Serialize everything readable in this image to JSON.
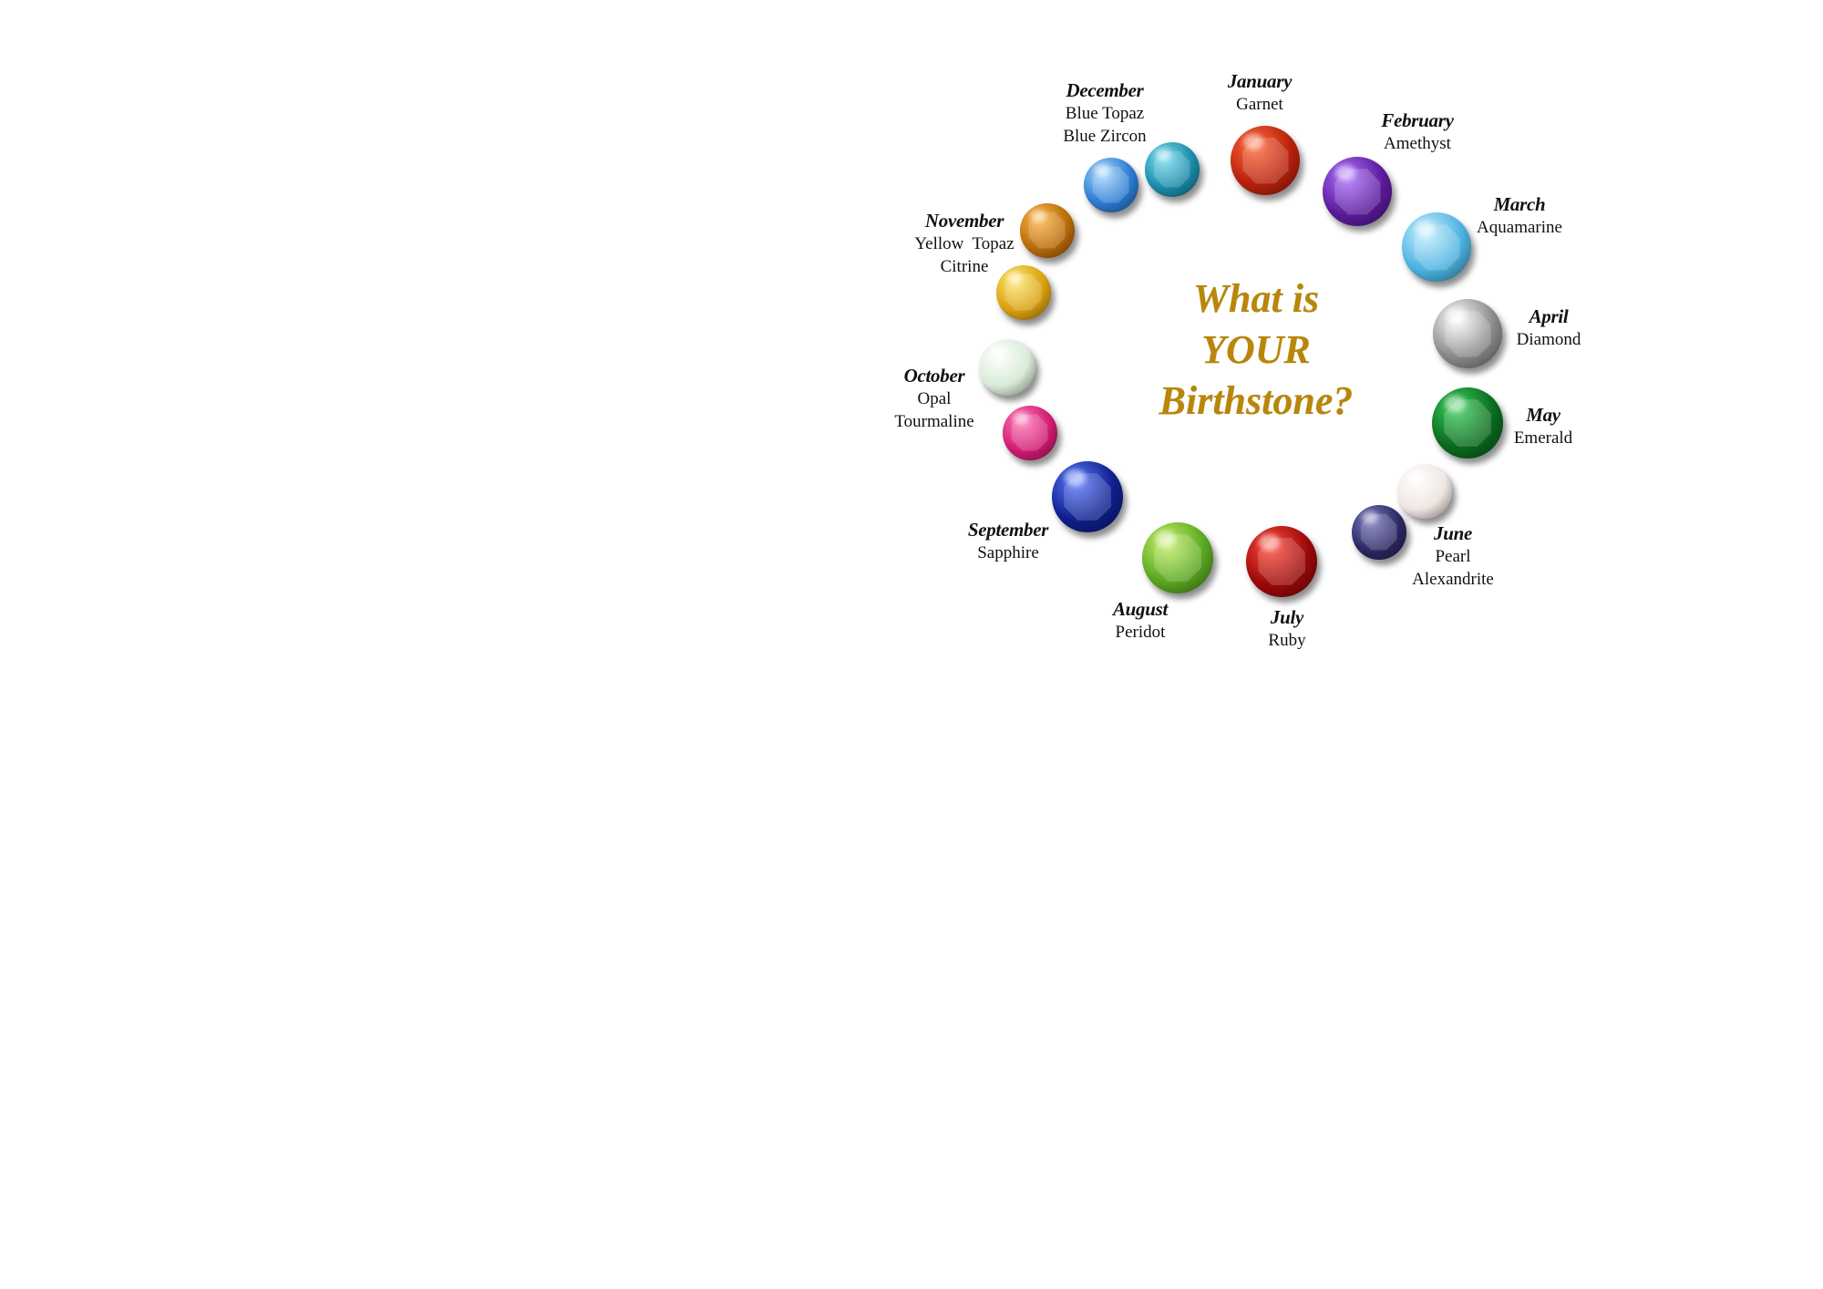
{
  "title": {
    "line1": "What is",
    "line2": "YOUR",
    "line3": "Birthstone?",
    "color": "#b8860b"
  },
  "months": [
    {
      "id": "january",
      "month": "January",
      "stones": [
        "Garnet"
      ]
    },
    {
      "id": "february",
      "month": "February",
      "stones": [
        "Amethyst"
      ]
    },
    {
      "id": "march",
      "month": "March",
      "stones": [
        "Aquamarine"
      ]
    },
    {
      "id": "april",
      "month": "April",
      "stones": [
        "Diamond"
      ]
    },
    {
      "id": "may",
      "month": "May",
      "stones": [
        "Emerald"
      ]
    },
    {
      "id": "june",
      "month": "June",
      "stones": [
        "Pearl",
        "Alexandrite"
      ]
    },
    {
      "id": "july",
      "month": "July",
      "stones": [
        "Ruby"
      ]
    },
    {
      "id": "august",
      "month": "August",
      "stones": [
        "Peridot"
      ]
    },
    {
      "id": "september",
      "month": "September",
      "stones": [
        "Sapphire"
      ]
    },
    {
      "id": "october",
      "month": "October",
      "stones": [
        "Opal",
        "Tourmaline"
      ]
    },
    {
      "id": "november",
      "month": "November",
      "stones": [
        "Yellow  Topaz",
        "Citrine"
      ]
    },
    {
      "id": "december",
      "month": "December",
      "stones": [
        "Blue Topaz",
        "Blue Zircon"
      ]
    }
  ],
  "gems": [
    {
      "name": "garnet-gem",
      "color": "#b8200c",
      "highlight": "#ff6a3a"
    },
    {
      "name": "amethyst-gem",
      "color": "#5a1a9a",
      "highlight": "#b070ff"
    },
    {
      "name": "aquamarine-gem",
      "color": "#4ab2e0",
      "highlight": "#c8f0ff"
    },
    {
      "name": "diamond-gem",
      "color": "#8a8a8a",
      "highlight": "#ffffff"
    },
    {
      "name": "emerald-gem",
      "color": "#0a6a1e",
      "highlight": "#3cd05a"
    },
    {
      "name": "pearl-gem",
      "color": "#efe6e2",
      "highlight": "#ffffff"
    },
    {
      "name": "alexandrite-gem",
      "color": "#2a2860",
      "highlight": "#7a78c0"
    },
    {
      "name": "ruby-gem",
      "color": "#9a0808",
      "highlight": "#ff4a3a"
    },
    {
      "name": "peridot-gem",
      "color": "#5aa820",
      "highlight": "#c8f06a"
    },
    {
      "name": "sapphire-gem",
      "color": "#0e1e8a",
      "highlight": "#5a7aff"
    },
    {
      "name": "tourmaline-gem",
      "color": "#d01a70",
      "highlight": "#ff7ab8"
    },
    {
      "name": "opal-gem",
      "color": "#d8ecd8",
      "highlight": "#ffffff"
    },
    {
      "name": "citrine-gem",
      "color": "#d8a010",
      "highlight": "#ffe870"
    },
    {
      "name": "yellow-topaz-gem",
      "color": "#b86a08",
      "highlight": "#ffb84a"
    },
    {
      "name": "blue-topaz-gem",
      "color": "#2a7ad0",
      "highlight": "#a8d8ff"
    },
    {
      "name": "blue-zircon-gem",
      "color": "#1a8aa8",
      "highlight": "#7ae0f0"
    }
  ]
}
